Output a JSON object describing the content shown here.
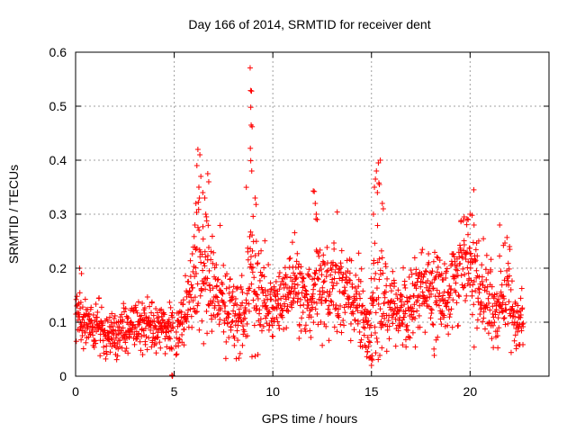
{
  "chart_data": {
    "type": "scatter",
    "title": "Day 166 of 2014, SRMTID for receiver dent",
    "xlabel": "GPS time / hours",
    "ylabel": "SRMTID / TECUs",
    "xlim": [
      0,
      24
    ],
    "ylim": [
      0,
      0.6
    ],
    "xticks": [
      0,
      5,
      10,
      15,
      20
    ],
    "yticks": [
      0,
      0.1,
      0.2,
      0.3,
      0.4,
      0.5,
      0.6
    ],
    "xtick_labels": [
      "0",
      "5",
      "10",
      "15",
      "20"
    ],
    "ytick_labels": [
      "0",
      "0.1",
      "0.2",
      "0.3",
      "0.4",
      "0.5",
      "0.6"
    ],
    "grid": true,
    "marker": "+",
    "color": "#ff0000",
    "series": [
      {
        "name": "SRMTID",
        "profile": [
          [
            0.0,
            0.12,
            0.03
          ],
          [
            0.5,
            0.1,
            0.03
          ],
          [
            1.0,
            0.09,
            0.025
          ],
          [
            1.5,
            0.08,
            0.02
          ],
          [
            2.0,
            0.08,
            0.02
          ],
          [
            2.5,
            0.09,
            0.02
          ],
          [
            3.0,
            0.09,
            0.02
          ],
          [
            3.5,
            0.1,
            0.025
          ],
          [
            4.0,
            0.09,
            0.02
          ],
          [
            4.5,
            0.1,
            0.02
          ],
          [
            4.9,
            0.09,
            0.02
          ],
          [
            5.1,
            0.08,
            0.025
          ],
          [
            5.5,
            0.11,
            0.03
          ],
          [
            5.9,
            0.14,
            0.04
          ],
          [
            6.2,
            0.22,
            0.07
          ],
          [
            6.5,
            0.2,
            0.06
          ],
          [
            7.0,
            0.15,
            0.04
          ],
          [
            7.5,
            0.14,
            0.04
          ],
          [
            8.0,
            0.12,
            0.035
          ],
          [
            8.5,
            0.11,
            0.035
          ],
          [
            8.9,
            0.2,
            0.08
          ],
          [
            9.3,
            0.14,
            0.05
          ],
          [
            9.8,
            0.12,
            0.035
          ],
          [
            10.3,
            0.14,
            0.035
          ],
          [
            10.8,
            0.15,
            0.04
          ],
          [
            11.3,
            0.16,
            0.04
          ],
          [
            11.8,
            0.12,
            0.035
          ],
          [
            12.2,
            0.17,
            0.05
          ],
          [
            12.6,
            0.16,
            0.04
          ],
          [
            13.0,
            0.17,
            0.04
          ],
          [
            13.5,
            0.17,
            0.045
          ],
          [
            14.0,
            0.15,
            0.04
          ],
          [
            14.5,
            0.12,
            0.04
          ],
          [
            14.9,
            0.08,
            0.035
          ],
          [
            15.3,
            0.2,
            0.08
          ],
          [
            15.8,
            0.13,
            0.04
          ],
          [
            16.3,
            0.11,
            0.03
          ],
          [
            16.8,
            0.12,
            0.035
          ],
          [
            17.3,
            0.15,
            0.04
          ],
          [
            17.8,
            0.15,
            0.04
          ],
          [
            18.3,
            0.14,
            0.04
          ],
          [
            18.8,
            0.15,
            0.04
          ],
          [
            19.3,
            0.19,
            0.05
          ],
          [
            19.8,
            0.23,
            0.05
          ],
          [
            20.3,
            0.17,
            0.05
          ],
          [
            20.8,
            0.13,
            0.04
          ],
          [
            21.3,
            0.14,
            0.04
          ],
          [
            21.8,
            0.16,
            0.045
          ],
          [
            22.3,
            0.1,
            0.03
          ],
          [
            22.7,
            0.1,
            0.03
          ]
        ],
        "gaps": [
          [
            4.95,
            5.08
          ]
        ],
        "sample_count": 1700,
        "outliers": [
          [
            8.85,
            0.571
          ],
          [
            8.87,
            0.529
          ],
          [
            8.92,
            0.528
          ],
          [
            8.88,
            0.498
          ],
          [
            8.9,
            0.465
          ],
          [
            8.95,
            0.462
          ],
          [
            8.86,
            0.422
          ],
          [
            8.88,
            0.399
          ],
          [
            8.93,
            0.38
          ],
          [
            9.1,
            0.33
          ],
          [
            9.15,
            0.318
          ],
          [
            9.0,
            0.296
          ],
          [
            6.2,
            0.42
          ],
          [
            6.3,
            0.41
          ],
          [
            6.15,
            0.39
          ],
          [
            6.35,
            0.37
          ],
          [
            6.25,
            0.35
          ],
          [
            6.45,
            0.34
          ],
          [
            6.55,
            0.33
          ],
          [
            6.1,
            0.32
          ],
          [
            6.6,
            0.3
          ],
          [
            6.7,
            0.375
          ],
          [
            6.75,
            0.36
          ],
          [
            6.05,
            0.28
          ],
          [
            15.45,
            0.4
          ],
          [
            15.35,
            0.395
          ],
          [
            15.25,
            0.38
          ],
          [
            15.2,
            0.365
          ],
          [
            15.4,
            0.355
          ],
          [
            15.15,
            0.35
          ],
          [
            15.3,
            0.34
          ],
          [
            15.55,
            0.32
          ],
          [
            15.6,
            0.31
          ],
          [
            15.1,
            0.3
          ],
          [
            12.05,
            0.343
          ],
          [
            12.1,
            0.342
          ],
          [
            12.15,
            0.32
          ],
          [
            12.2,
            0.3
          ],
          [
            12.25,
            0.29
          ],
          [
            20.0,
            0.3
          ],
          [
            20.1,
            0.298
          ],
          [
            19.9,
            0.29
          ],
          [
            19.7,
            0.295
          ],
          [
            20.2,
            0.28
          ],
          [
            21.5,
            0.28
          ],
          [
            22.0,
            0.24
          ],
          [
            4.88,
            0.002
          ],
          [
            4.9,
            0.0
          ],
          [
            4.92,
            0.001
          ],
          [
            15.0,
            0.02
          ],
          [
            14.95,
            0.035
          ],
          [
            15.05,
            0.03
          ],
          [
            14.8,
            0.045
          ],
          [
            0.2,
            0.2
          ],
          [
            0.3,
            0.19
          ]
        ]
      }
    ]
  }
}
